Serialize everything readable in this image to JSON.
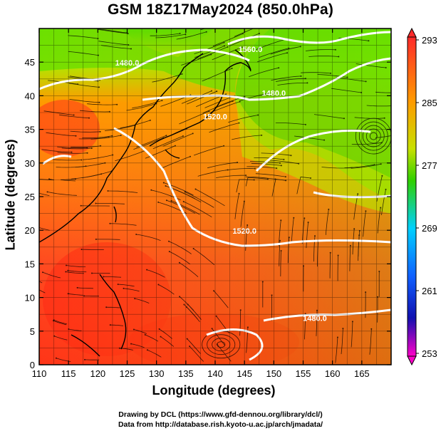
{
  "title": "GSM 18Z17May2024 (850.0hPa)",
  "xlabel": "Longitude (degrees)",
  "ylabel": "Latitude  (degrees)",
  "x_ticks": [
    "110",
    "115",
    "120",
    "125",
    "130",
    "135",
    "140",
    "145",
    "150",
    "155",
    "160",
    "165"
  ],
  "y_ticks": [
    "0",
    "5",
    "10",
    "15",
    "20",
    "25",
    "30",
    "35",
    "40",
    "45"
  ],
  "colorbar_labels": [
    "293",
    "285",
    "277",
    "269",
    "261",
    "253"
  ],
  "contour_labels": [
    "1560.0",
    "1480.0",
    "1480.0",
    "1520.0",
    "1520.0",
    "1480.0"
  ],
  "credits": {
    "line1": "Drawing by DCL (https://www.gfd-dennou.org/library/dcl/)",
    "line2": "Data from http://database.rish.kyoto-u.ac.jp/arch/jmadata/"
  },
  "colors": {
    "warm": "#ff3b1f",
    "mid": "#ff9a00",
    "cool": "#3bdc00",
    "contour": "#ffffff"
  },
  "chart_data": {
    "type": "heatmap",
    "variable": "temperature (K) with wind streamlines and geopotential height contours",
    "xlim": [
      110,
      170
    ],
    "ylim": [
      0,
      50
    ],
    "colorbar_range": [
      253,
      293
    ],
    "contours": [
      {
        "label": "1560.0",
        "lon": 146,
        "lat": 46.5
      },
      {
        "label": "1480.0",
        "lon": 125,
        "lat": 44.5
      },
      {
        "label": "1480.0",
        "lon": 150,
        "lat": 40
      },
      {
        "label": "1520.0",
        "lon": 140,
        "lat": 36.5
      },
      {
        "label": "1520.0",
        "lon": 145,
        "lat": 19.5
      },
      {
        "label": "1480.0",
        "lon": 157,
        "lat": 6.5
      }
    ]
  }
}
